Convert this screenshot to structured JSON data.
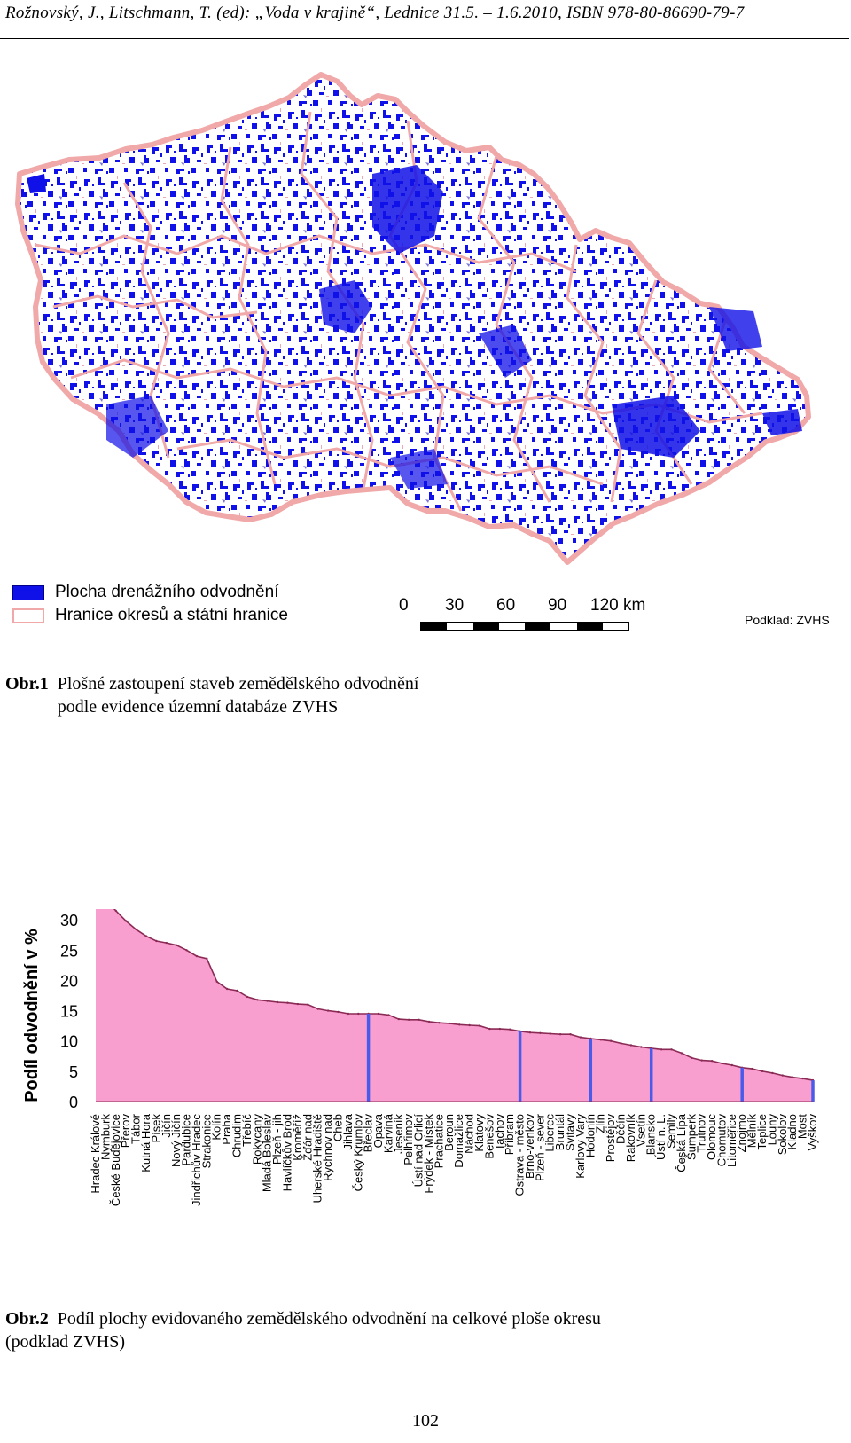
{
  "header": {
    "text": "Rožnovský, J., Litschmann, T. (ed): „Voda v krajině“, Lednice 31.5. – 1.6.2010, ISBN 978-80-86690-79-7"
  },
  "figure1": {
    "legend": {
      "drainage_label": "Plocha drenážního odvodnění",
      "border_label": "Hranice okresů a státní hranice"
    },
    "scale": {
      "labels": [
        "0",
        "30",
        "60",
        "90",
        "120 km"
      ]
    },
    "source": "Podklad: ZVHS",
    "caption_label": "Obr.1",
    "caption_line1": "Plošné zastoupení staveb zemědělského odvodnění",
    "caption_line2": "podle evidence územní databáze ZVHS",
    "colors": {
      "drainage": "#1010e8",
      "border": "#f0a8a8"
    }
  },
  "figure2": {
    "caption_label": "Obr.2",
    "caption_line1": "Podíl plochy evidovaného zemědělského odvodnění na celkové ploše okresu",
    "caption_line2": "(podklad ZVHS)"
  },
  "chart_data": {
    "type": "area",
    "ylabel": "Podíl odvodnění v %",
    "ylim": [
      0,
      35
    ],
    "yticks": [
      0,
      5,
      10,
      15,
      20,
      25,
      30,
      35
    ],
    "fill_color": "#f99fd0",
    "line_color": "#8b2a55",
    "highlight_color": "#4a5bea",
    "categories": [
      "Hradec Králové",
      "Nymburk",
      "České Budějovice",
      "Přerov",
      "Tábor",
      "Kutná Hora",
      "Písek",
      "Jičín",
      "Nový Jičín",
      "Pardubice",
      "Jindřichův Hradec",
      "Strakonice",
      "Kolín",
      "Praha",
      "Chrudim",
      "Třebíč",
      "Rokycany",
      "Mladá Boleslav",
      "Plzeň - jih",
      "Havlíčkův Brod",
      "Kroměříž",
      "Žďár nad",
      "Uherské Hradiště",
      "Rychnov nad",
      "Cheb",
      "Jihlava",
      "Český Krumlov",
      "Břeclav",
      "Opava",
      "Karviná",
      "Jeseník",
      "Pelhřimov",
      "Ústí nad Orlicí",
      "Frýdek - Místek",
      "Prachatice",
      "Beroun",
      "Domažlice",
      "Náchod",
      "Klatovy",
      "Benešov",
      "Tachov",
      "Příbram",
      "Ostrava - město",
      "Brno-venkov",
      "Plzeň - sever",
      "Liberec",
      "Bruntál",
      "Svitavy",
      "Karlovy Vary",
      "Hodonín",
      "Zlín",
      "Prostějov",
      "Děčín",
      "Rakovník",
      "Vsetín",
      "Blansko",
      "Ústí n. L.",
      "Semily",
      "Česká Lípa",
      "Šumperk",
      "Trutnov",
      "Olomouc",
      "Chomutov",
      "Litoměřice",
      "Znojmo",
      "Mělník",
      "Teplice",
      "Louny",
      "Sokolov",
      "Kladno",
      "Most",
      "Vyškov"
    ],
    "values": [
      34.6,
      33.3,
      31.5,
      29.8,
      28.4,
      27.3,
      26.5,
      26.2,
      25.8,
      25.0,
      24.0,
      23.6,
      19.8,
      18.6,
      18.3,
      17.3,
      16.8,
      16.6,
      16.4,
      16.3,
      16.1,
      16.0,
      15.3,
      15.0,
      14.8,
      14.5,
      14.5,
      14.5,
      14.5,
      14.3,
      13.6,
      13.5,
      13.5,
      13.2,
      13.0,
      12.9,
      12.7,
      12.6,
      12.5,
      12.0,
      12.0,
      11.9,
      11.6,
      11.4,
      11.3,
      11.2,
      11.1,
      11.1,
      10.6,
      10.4,
      10.2,
      10.0,
      9.6,
      9.3,
      9.0,
      8.8,
      8.6,
      8.6,
      8.0,
      7.2,
      6.8,
      6.7,
      6.3,
      6.0,
      5.6,
      5.4,
      5.0,
      4.7,
      4.3,
      4.0,
      3.8,
      3.5
    ],
    "highlighted_categories": [
      "Břeclav",
      "Ostrava - město",
      "Hodonín",
      "Blansko",
      "Znojmo",
      "Vyškov"
    ]
  },
  "page_number": "102"
}
